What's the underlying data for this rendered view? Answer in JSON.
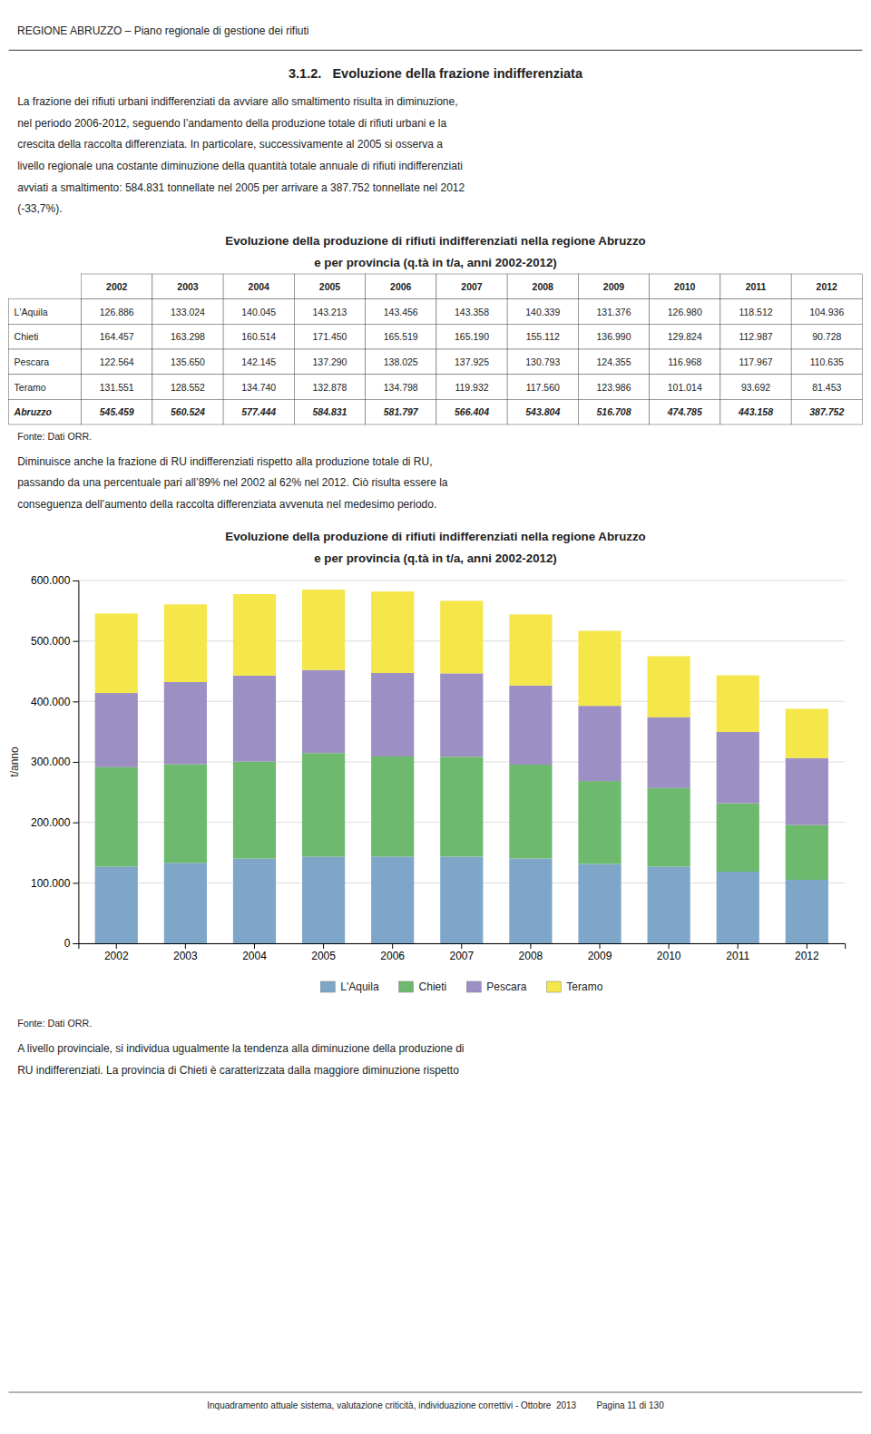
{
  "header_text": "REGIONE ABRUZZO – Piano regionale di gestione dei rifiuti",
  "section_title": "3.1.2.   Evoluzione della frazione indifferenziata",
  "body_text1": [
    "La frazione dei rifiuti urbani indifferenziati da avviare allo smaltimento risulta in diminuzione,",
    "nel periodo 2006-2012, seguendo l’andamento della produzione totale di rifiuti urbani e la",
    "crescita della raccolta differenziata. In particolare, successivamente al 2005 si osserva a",
    "livello regionale una costante diminuzione della quantità totale annuale di rifiuti indifferenziati",
    "avviati a smaltimento: 584.831 tonnellate nel 2005 per arrivare a 387.752 tonnellate nel 2012",
    "(-33,7%)."
  ],
  "table": {
    "title": "Evoluzione della produzione di rifiuti indifferenziati nella regione Abruzzo\ne per provincia (q.tà in t/a, anni 2002-2012)",
    "columns": [
      2002,
      2003,
      2004,
      2005,
      2006,
      2007,
      2008,
      2009,
      2010,
      2011,
      2012
    ],
    "rows": [
      {
        "label": "L'Aquila",
        "cells": [
          "126.886",
          "133.024",
          "140.045",
          "143.213",
          "143.456",
          "143.358",
          "140.339",
          "131.376",
          "126.980",
          "118.512",
          "104.936"
        ]
      },
      {
        "label": "Chieti",
        "cells": [
          "164.457",
          "163.298",
          "160.514",
          "171.450",
          "165.519",
          "165.190",
          "155.112",
          "136.990",
          "129.824",
          "112.987",
          "90.728"
        ]
      },
      {
        "label": "Pescara",
        "cells": [
          "122.564",
          "135.650",
          "142.145",
          "137.290",
          "138.025",
          "137.925",
          "130.793",
          "124.355",
          "116.968",
          "117.967",
          "110.635"
        ]
      },
      {
        "label": "Teramo",
        "cells": [
          "131.551",
          "128.552",
          "134.740",
          "132.878",
          "134.798",
          "119.932",
          "117.560",
          "123.986",
          "101.014",
          "93.692",
          "81.453"
        ]
      },
      {
        "label": "Abruzzo",
        "cells": [
          "545.459",
          "560.524",
          "577.444",
          "584.831",
          "581.797",
          "566.404",
          "543.804",
          "516.708",
          "474.785",
          "443.158",
          "387.752"
        ]
      }
    ]
  },
  "table_source": "Fonte: Dati ORR.",
  "body_text2": [
    "Diminuisce anche la frazione di RU indifferenziati rispetto alla produzione totale di RU,",
    "passando da una percentuale pari all’89% nel 2002 al 62% nel 2012. Ciò risulta essere la",
    "conseguenza dell’aumento della raccolta differenziata avvenuta nel medesimo periodo."
  ],
  "chart_data": {
    "type": "bar",
    "stacked": true,
    "title": "Evoluzione della produzione di rifiuti indifferenziati nella regione Abruzzo\ne per provincia (q.tà in t/a, anni 2002-2012)",
    "categories": [
      "2002",
      "2003",
      "2004",
      "2005",
      "2006",
      "2007",
      "2008",
      "2009",
      "2010",
      "2011",
      "2012"
    ],
    "series": [
      {
        "name": "L'Aquila",
        "color": "#7ea6c8",
        "values": [
          126886,
          133024,
          140045,
          143213,
          143456,
          143358,
          140339,
          131376,
          126980,
          118512,
          104936
        ]
      },
      {
        "name": "Chieti",
        "color": "#6db96d",
        "values": [
          164457,
          163298,
          160514,
          171450,
          165519,
          165190,
          155112,
          136990,
          129824,
          112987,
          90728
        ]
      },
      {
        "name": "Pescara",
        "color": "#9b8fc4",
        "values": [
          122564,
          135650,
          142145,
          137290,
          138025,
          137925,
          130793,
          124355,
          116968,
          117967,
          110635
        ]
      },
      {
        "name": "Teramo",
        "color": "#f5e64a",
        "values": [
          131551,
          128552,
          134740,
          132878,
          134798,
          119932,
          117560,
          123986,
          101014,
          93692,
          81453
        ]
      }
    ],
    "ylabel": "t/anno",
    "ylim": [
      0,
      600000
    ],
    "yticks": [
      0,
      {
        "value": 100000,
        "label": "100.000"
      },
      {
        "value": 200000,
        "label": "200.000"
      },
      {
        "value": 300000,
        "label": "300.000"
      },
      {
        "value": 400000,
        "label": "400.000"
      },
      {
        "value": 500000,
        "label": "500.000"
      },
      {
        "value": 600000,
        "label": "600.000"
      }
    ],
    "grid": true,
    "legend": "bottom"
  },
  "chart_source": "Fonte: Dati ORR.",
  "body_text3": [
    "A livello provinciale, si individua ugualmente la tendenza alla diminuzione della produzione di",
    "RU indifferenziati. La provincia di Chieti è caratterizzata dalla maggiore diminuzione rispetto"
  ],
  "footer_text": "Inquadramento attuale sistema, valutazione criticità, individuazione correttivi - Ottobre  2013        Pagina 11 di 130"
}
